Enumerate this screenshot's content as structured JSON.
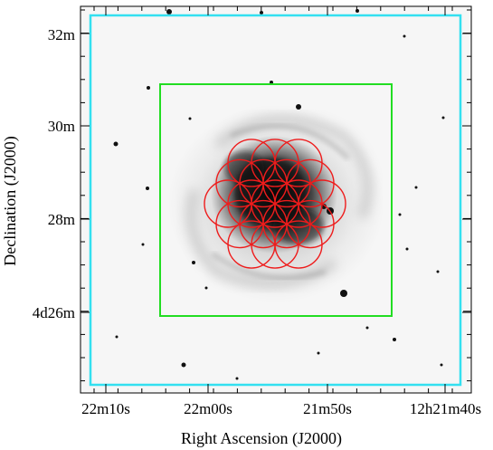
{
  "figure": {
    "xlabel": "Right Ascension (J2000)",
    "ylabel": "Declination (J2000)",
    "x_ticks": [
      "22m10s",
      "22m00s",
      "21m50s",
      "12h21m40s"
    ],
    "y_ticks": [
      "32m",
      "30m",
      "28m",
      "4d26m"
    ]
  },
  "colors": {
    "outer_field_box": "#33e0f0",
    "inner_field_box": "#22dd22",
    "fiber_circles": "#ee1c1c",
    "frame": "#000000"
  },
  "overlays": {
    "outer_field_box": "cyan rectangle",
    "inner_field_box": "green rectangle",
    "fiber_pattern": "19 red circles in hexagonal packing"
  }
}
